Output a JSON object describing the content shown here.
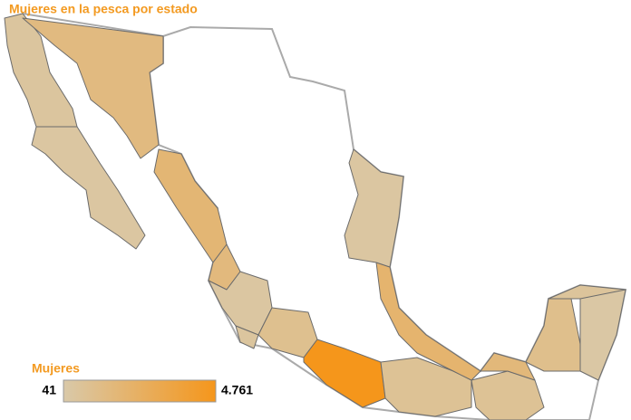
{
  "chart_data": {
    "type": "choropleth",
    "title": "Mujeres en la pesca por estado",
    "values": [
      400,
      300,
      1400,
      1800,
      1500,
      300,
      400,
      900,
      4761,
      700,
      700,
      2000,
      300,
      1600,
      1000,
      500,
      200
    ],
    "legend_title": "Mujeres",
    "color_range": [
      "#d9c9a9",
      "#f5961b"
    ],
    "clim": [
      41,
      4761
    ],
    "cticks": [
      41,
      {
        "value": 4761,
        "label": "4.761"
      }
    ]
  }
}
